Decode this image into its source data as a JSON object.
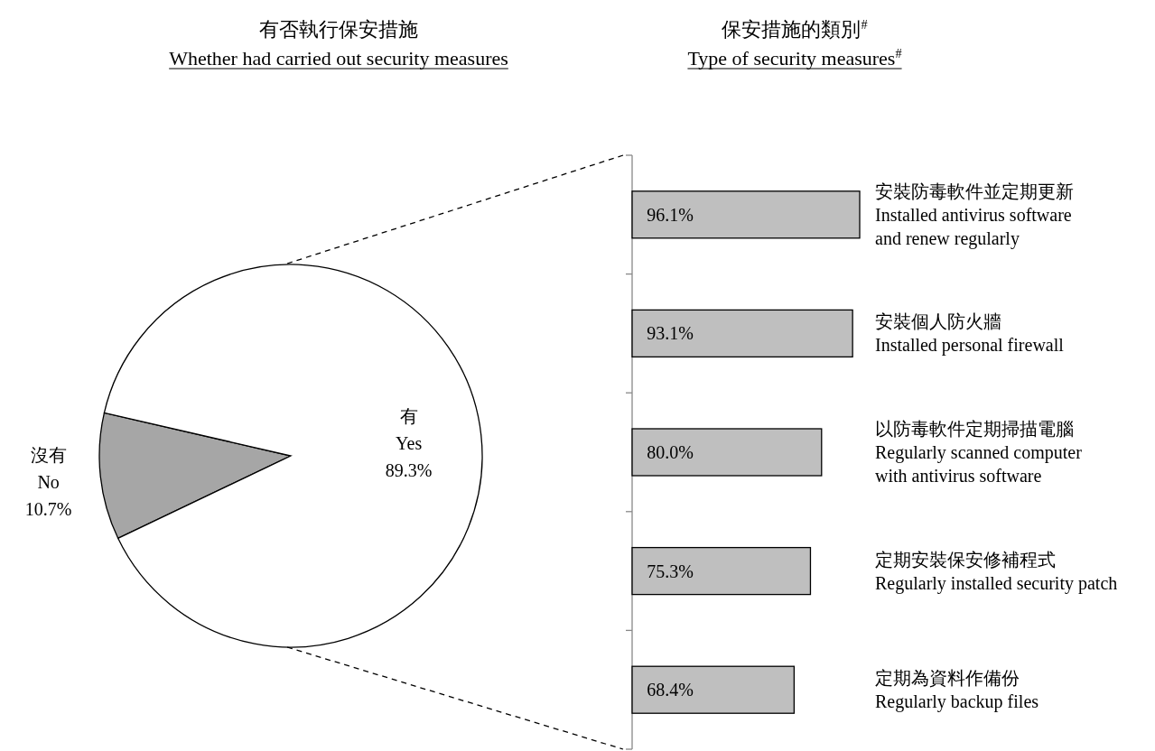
{
  "chart_data": [
    {
      "type": "pie",
      "title": "有否執行保安措施",
      "subtitle": "Whether had carried out security measures",
      "categories": [
        "沒有\nNo",
        "有\nYes"
      ],
      "values": [
        10.7,
        89.3
      ],
      "colors": [
        "#a6a6a6",
        "#ffffff"
      ],
      "value_labels": [
        "10.7%",
        "89.3%"
      ]
    },
    {
      "type": "bar",
      "orientation": "horizontal",
      "title": "保安措施的類別$^{#}$",
      "subtitle": "Type of security measures$^{#}$",
      "categories": [
        "安裝防毒軟件並定期更新\nInstalled antivirus software\nand renew regularly",
        "安裝個人防火牆\nInstalled personal firewall",
        "以防毒軟件定期掃描電腦\nRegularly scanned computer\nwith antivirus software",
        "定期安裝保安修補程式\nRegularly installed security patch",
        "定期為資料作備份\nRegularly backup files"
      ],
      "values": [
        96.1,
        93.1,
        80.0,
        75.3,
        68.4
      ],
      "color": "#bfbfbf",
      "value_labels": [
        "96.1%",
        "93.1%",
        "80.0%",
        "75.3%",
        "68.4%"
      ]
    }
  ]
}
